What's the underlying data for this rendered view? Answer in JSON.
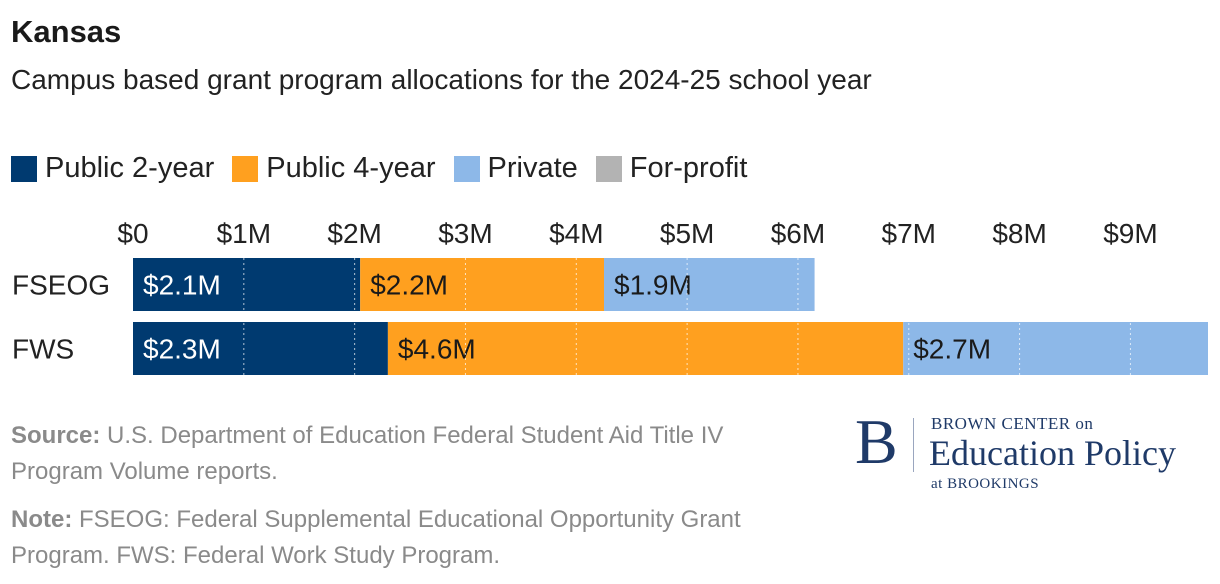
{
  "chart_data": {
    "type": "bar",
    "orientation": "horizontal",
    "stacked": true,
    "title": "Kansas",
    "subtitle": "Campus based grant program allocations for the 2024-25 school year",
    "categories": [
      "FSEOG",
      "FWS"
    ],
    "series": [
      {
        "name": "Public 2-year",
        "color": "#003a70",
        "values": [
          2.05,
          2.3
        ],
        "labels": [
          "$2.1M",
          "$2.3M"
        ]
      },
      {
        "name": "Public 4-year",
        "color": "#ffa01f",
        "values": [
          2.2,
          4.65
        ],
        "labels": [
          "$2.2M",
          "$4.6M"
        ]
      },
      {
        "name": "Private",
        "color": "#8db8e8",
        "values": [
          1.9,
          2.75
        ],
        "labels": [
          "$1.9M",
          "$2.7M"
        ]
      },
      {
        "name": "For-profit",
        "color": "#b3b3b3",
        "values": [
          0,
          0
        ],
        "labels": [
          "",
          ""
        ]
      }
    ],
    "xlim": [
      0,
      9.7
    ],
    "xticks": [
      0,
      1,
      2,
      3,
      4,
      5,
      6,
      7,
      8,
      9
    ],
    "xtick_labels": [
      "$0",
      "$1M",
      "$2M",
      "$3M",
      "$4M",
      "$5M",
      "$6M",
      "$7M",
      "$8M",
      "$9M"
    ],
    "axis_position": "top",
    "grid": true,
    "legend_position": "top-left"
  },
  "footer": {
    "source_label": "Source:",
    "source_text": " U.S. Department of Education Federal Student Aid Title IV Program Volume reports.",
    "note_label": "Note:",
    "note_text": " FSEOG: Federal Supplemental Educational Opportunity Grant Program. FWS: Federal Work Study Program."
  },
  "logo": {
    "mark": "B",
    "line1": "BROWN CENTER on",
    "line2": "Education Policy",
    "line3": "at BROOKINGS"
  }
}
